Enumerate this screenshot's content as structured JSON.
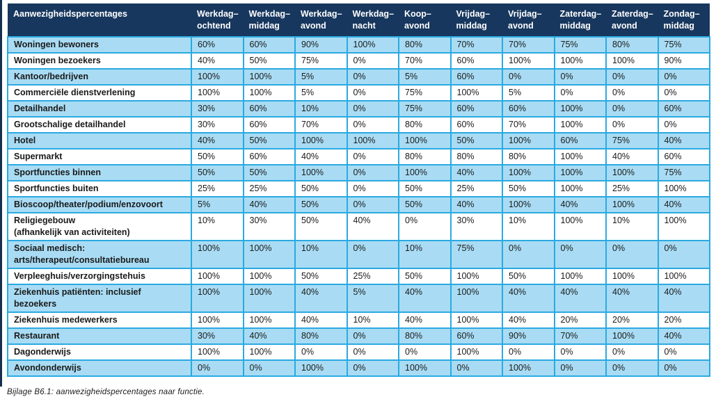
{
  "caption": "Bijlage B6.1: aanwezigheidspercentages naar functie.",
  "colors": {
    "header_bg": "#17375e",
    "header_text": "#ffffff",
    "row_alt_bg": "#a9dcf4",
    "row_bg": "#ffffff",
    "border": "#2ba9e1",
    "body_text": "#1a1a1a"
  },
  "table": {
    "label_column_header": "Aanwezigheidspercentages",
    "columns": [
      "Werkdag–\nochtend",
      "Werkdag–\nmiddag",
      "Werkdag–\navond",
      "Werkdag–\nnacht",
      "Koop–\navond",
      "Vrijdag–\nmiddag",
      "Vrijdag–\navond",
      "Zaterdag–\nmiddag",
      "Zaterdag–\navond",
      "Zondag–\nmiddag"
    ],
    "rows": [
      {
        "label": "Woningen bewoners",
        "values": [
          "60%",
          "60%",
          "90%",
          "100%",
          "80%",
          "70%",
          "70%",
          "75%",
          "80%",
          "75%"
        ]
      },
      {
        "label": "Woningen bezoekers",
        "values": [
          "40%",
          "50%",
          "75%",
          "0%",
          "70%",
          "60%",
          "100%",
          "100%",
          "100%",
          "90%"
        ]
      },
      {
        "label": "Kantoor/bedrijven",
        "values": [
          "100%",
          "100%",
          "5%",
          "0%",
          "5%",
          "60%",
          "0%",
          "0%",
          "0%",
          "0%"
        ]
      },
      {
        "label": "Commerciële dienstverlening",
        "values": [
          "100%",
          "100%",
          "5%",
          "0%",
          "75%",
          "100%",
          "5%",
          "0%",
          "0%",
          "0%"
        ]
      },
      {
        "label": "Detailhandel",
        "values": [
          "30%",
          "60%",
          "10%",
          "0%",
          "75%",
          "60%",
          "60%",
          "100%",
          "0%",
          "60%"
        ]
      },
      {
        "label": "Grootschalige detailhandel",
        "values": [
          "30%",
          "60%",
          "70%",
          "0%",
          "80%",
          "60%",
          "70%",
          "100%",
          "0%",
          "0%"
        ]
      },
      {
        "label": "Hotel",
        "values": [
          "40%",
          "50%",
          "100%",
          "100%",
          "100%",
          "50%",
          "100%",
          "60%",
          "75%",
          "40%"
        ]
      },
      {
        "label": "Supermarkt",
        "values": [
          "50%",
          "60%",
          "40%",
          "0%",
          "80%",
          "80%",
          "80%",
          "100%",
          "40%",
          "60%"
        ]
      },
      {
        "label": "Sportfuncties binnen",
        "values": [
          "50%",
          "50%",
          "100%",
          "0%",
          "100%",
          "40%",
          "100%",
          "100%",
          "100%",
          "75%"
        ]
      },
      {
        "label": "Sportfuncties buiten",
        "values": [
          "25%",
          "25%",
          "50%",
          "0%",
          "50%",
          "25%",
          "50%",
          "100%",
          "25%",
          "100%"
        ]
      },
      {
        "label": "Bioscoop/theater/podium/enzovoort",
        "values": [
          "5%",
          "40%",
          "50%",
          "0%",
          "50%",
          "40%",
          "100%",
          "40%",
          "100%",
          "40%"
        ]
      },
      {
        "label": "Religiegebouw\n(afhankelijk van activiteiten)",
        "values": [
          "10%",
          "30%",
          "50%",
          "40%",
          "0%",
          "30%",
          "10%",
          "100%",
          "10%",
          "100%"
        ]
      },
      {
        "label": "Sociaal medisch:\narts/therapeut/consultatiebureau",
        "values": [
          "100%",
          "100%",
          "10%",
          "0%",
          "10%",
          "75%",
          "0%",
          "0%",
          "0%",
          "0%"
        ]
      },
      {
        "label": "Verpleeghuis/verzorgingstehuis",
        "values": [
          "100%",
          "100%",
          "50%",
          "25%",
          "50%",
          "100%",
          "50%",
          "100%",
          "100%",
          "100%"
        ]
      },
      {
        "label": "Ziekenhuis patiënten: inclusief\nbezoekers",
        "values": [
          "100%",
          "100%",
          "40%",
          "5%",
          "40%",
          "100%",
          "40%",
          "40%",
          "40%",
          "40%"
        ]
      },
      {
        "label": "Ziekenhuis medewerkers",
        "values": [
          "100%",
          "100%",
          "40%",
          "10%",
          "40%",
          "100%",
          "40%",
          "20%",
          "20%",
          "20%"
        ]
      },
      {
        "label": "Restaurant",
        "values": [
          "30%",
          "40%",
          "80%",
          "0%",
          "80%",
          "60%",
          "90%",
          "70%",
          "100%",
          "40%"
        ]
      },
      {
        "label": "Dagonderwijs",
        "values": [
          "100%",
          "100%",
          "0%",
          "0%",
          "0%",
          "100%",
          "0%",
          "0%",
          "0%",
          "0%"
        ]
      },
      {
        "label": "Avondonderwijs",
        "values": [
          "0%",
          "0%",
          "100%",
          "0%",
          "100%",
          "0%",
          "100%",
          "0%",
          "0%",
          "0%"
        ]
      }
    ]
  }
}
